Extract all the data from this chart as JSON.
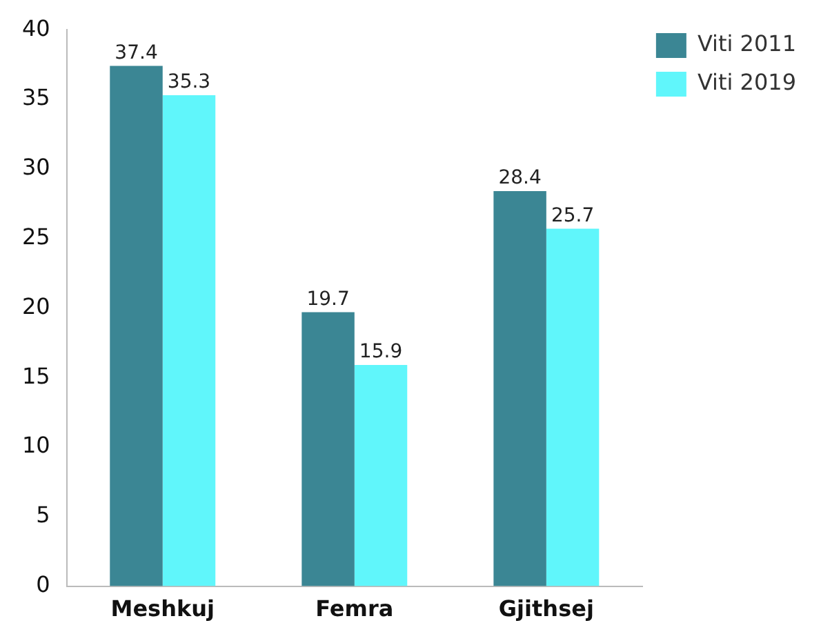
{
  "chart_data": {
    "type": "bar",
    "categories": [
      "Meshkuj",
      "Femra",
      "Gjithsej"
    ],
    "series": [
      {
        "name": "Viti 2011",
        "color": "#3b8694",
        "values": [
          37.4,
          19.7,
          28.4
        ]
      },
      {
        "name": "Viti 2019",
        "color": "#60f6fb",
        "values": [
          35.3,
          15.9,
          25.7
        ]
      }
    ],
    "ylim": [
      0,
      40
    ],
    "yticks": [
      0,
      5,
      10,
      15,
      20,
      25,
      30,
      35,
      40
    ],
    "grid": false,
    "legend": "top right",
    "data_labels": true
  }
}
